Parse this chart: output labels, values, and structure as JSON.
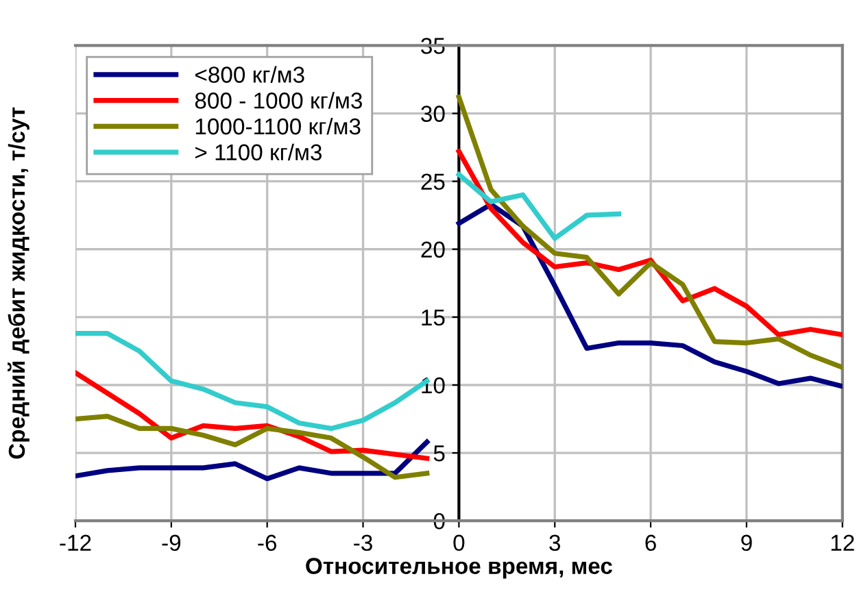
{
  "chart_data": {
    "type": "line",
    "xlabel": "Относительное время, мес",
    "ylabel": "Средний дебит жидкости, т/сут",
    "xlim": [
      -12,
      12
    ],
    "xticks": [
      -12,
      -9,
      -6,
      -3,
      0,
      3,
      6,
      9,
      12
    ],
    "ylim": [
      0,
      35
    ],
    "yticks": [
      0,
      5,
      10,
      15,
      20,
      25,
      30,
      35
    ],
    "grid": true,
    "legend": "top left",
    "marker": "none",
    "line_style": "solid",
    "series": [
      {
        "name": "<800 кг/м3",
        "color": "#000080",
        "x": [
          0,
          1,
          2,
          3,
          4,
          5,
          6,
          7,
          8,
          9,
          10,
          11,
          12
        ],
        "values": [
          21.9,
          23.3,
          21.7,
          17.3,
          12.7,
          13.1,
          13.1,
          12.9,
          11.7,
          11.0,
          10.1,
          10.5,
          9.9
        ]
      },
      {
        "name": "800 - 1000 кг/м3",
        "color": "#ff0000",
        "x": [
          0,
          1,
          2,
          3,
          4,
          5,
          6,
          7,
          8,
          9,
          10,
          11,
          12
        ],
        "values": [
          27.2,
          23.0,
          20.5,
          18.7,
          19.0,
          18.5,
          19.2,
          16.2,
          17.1,
          15.8,
          13.7,
          14.1,
          13.7
        ]
      },
      {
        "name": "1000-1100 кг/м3",
        "color": "#808000",
        "x": [
          0,
          1,
          2,
          3,
          4,
          5,
          6,
          7,
          8,
          9,
          10,
          11,
          12
        ],
        "values": [
          31.2,
          24.4,
          21.7,
          19.7,
          19.4,
          16.7,
          19.0,
          17.4,
          13.2,
          13.1,
          13.4,
          12.2,
          11.3
        ]
      },
      {
        "name": "> 1100 кг/м3",
        "color": "#33cccc",
        "x": [
          0,
          1,
          2,
          3,
          4,
          5
        ],
        "values": [
          25.5,
          23.5,
          24.0,
          20.8,
          22.5,
          22.6
        ]
      },
      {
        "color": "#000080",
        "x": [
          -12,
          -11,
          -10,
          -9,
          -8,
          -7,
          -6,
          -5,
          -4,
          -3,
          -2,
          -1
        ],
        "values": [
          3.3,
          3.7,
          3.9,
          3.9,
          3.9,
          4.2,
          3.1,
          3.9,
          3.5,
          3.5,
          3.5,
          5.8
        ]
      },
      {
        "color": "#ff0000",
        "x": [
          -12,
          -11,
          -10,
          -9,
          -8,
          -7,
          -6,
          -5,
          -4,
          -3,
          -2,
          -1
        ],
        "values": [
          10.9,
          9.4,
          7.9,
          6.1,
          7.0,
          6.8,
          7.0,
          6.2,
          5.1,
          5.2,
          4.9,
          4.6
        ]
      },
      {
        "color": "#808000",
        "x": [
          -12,
          -11,
          -10,
          -9,
          -8,
          -7,
          -6,
          -5,
          -4,
          -3,
          -2,
          -1
        ],
        "values": [
          7.5,
          7.7,
          6.8,
          6.8,
          6.3,
          5.6,
          6.8,
          6.5,
          6.1,
          4.7,
          3.2,
          3.5
        ]
      },
      {
        "color": "#33cccc",
        "x": [
          -12,
          -11,
          -10,
          -9,
          -8,
          -7,
          -6,
          -5,
          -4,
          -3,
          -2,
          -1
        ],
        "values": [
          13.8,
          13.8,
          12.5,
          10.3,
          9.7,
          8.7,
          8.4,
          7.2,
          6.8,
          7.4,
          8.7,
          10.3
        ]
      }
    ]
  }
}
